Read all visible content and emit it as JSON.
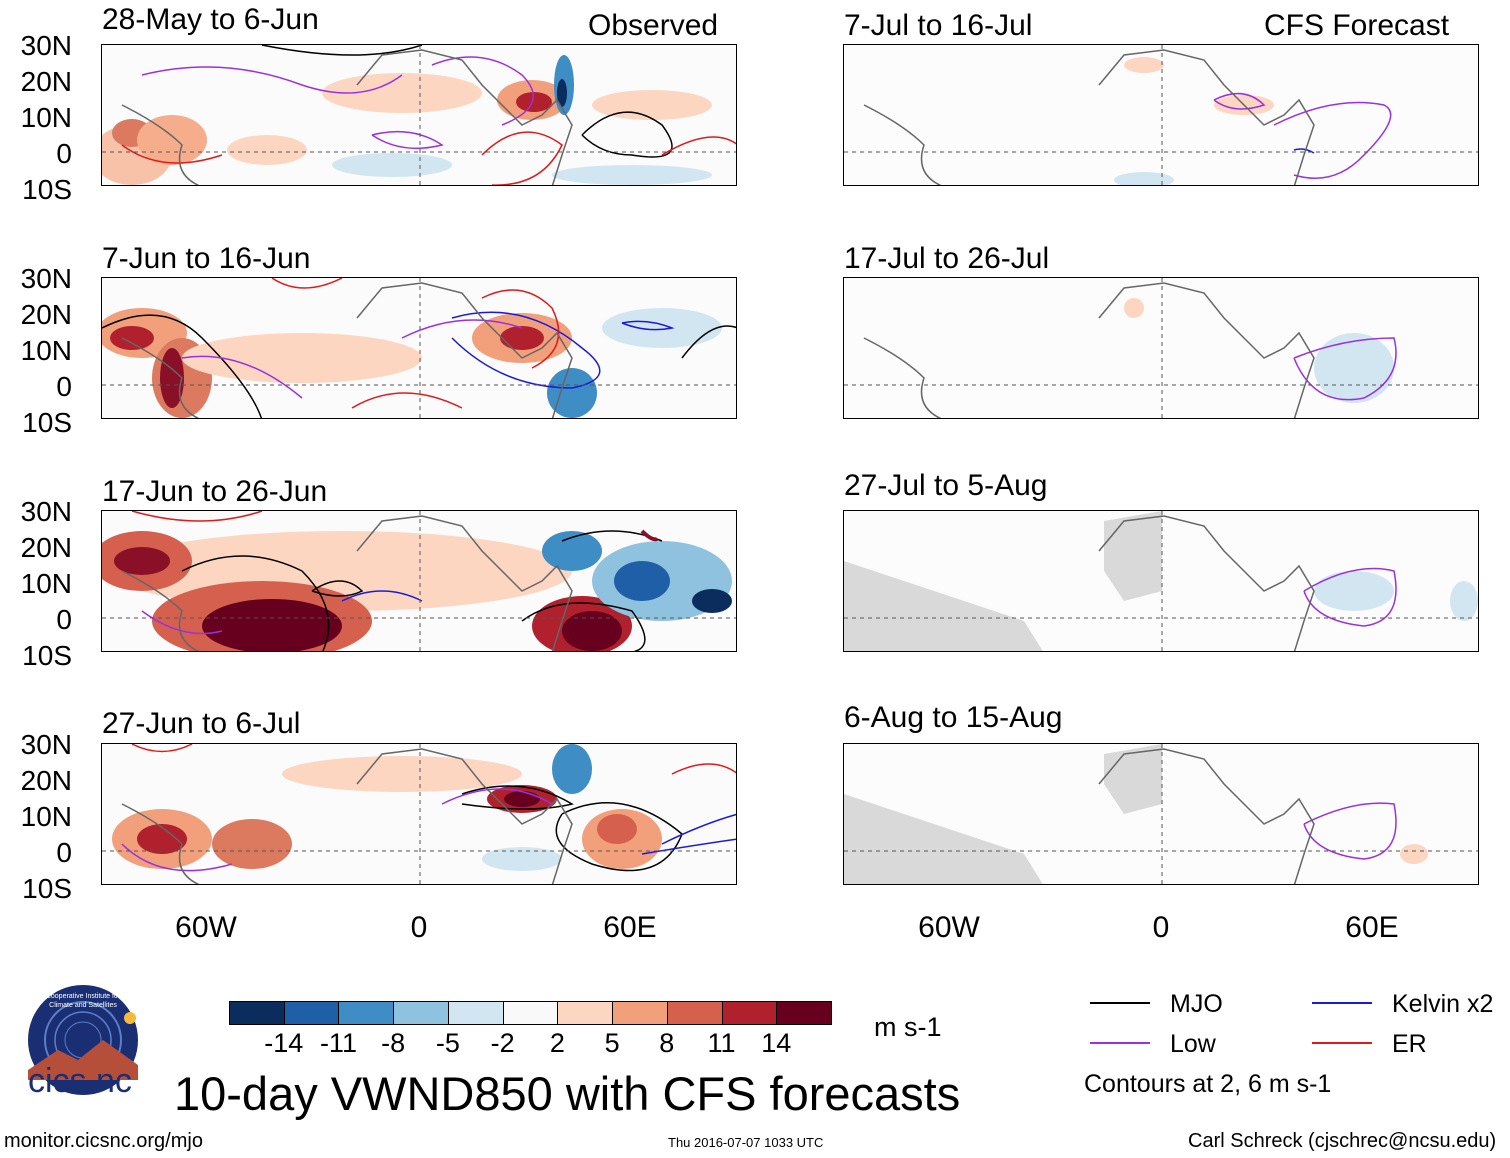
{
  "titles": {
    "observed": "Observed",
    "forecast": "CFS Forecast"
  },
  "panels_left": [
    {
      "title": "28-May to 6-Jun"
    },
    {
      "title": "7-Jun to 16-Jun"
    },
    {
      "title": "17-Jun to 26-Jun"
    },
    {
      "title": "27-Jun to 6-Jul"
    }
  ],
  "panels_right": [
    {
      "title": "7-Jul to 16-Jul"
    },
    {
      "title": "17-Jul to 26-Jul"
    },
    {
      "title": "27-Jul to 5-Aug"
    },
    {
      "title": "6-Aug to 15-Aug"
    }
  ],
  "lat_labels": [
    "30N",
    "20N",
    "10N",
    "0",
    "10S"
  ],
  "lon_labels": [
    "60W",
    "0",
    "60E"
  ],
  "colorbar": {
    "colors": [
      "#0b2d5e",
      "#1f5fa8",
      "#3e8dc4",
      "#8fc2de",
      "#d2e6f1",
      "#f9f9f9",
      "#fcd6c1",
      "#f2a07b",
      "#d5604d",
      "#b0202d",
      "#67001f"
    ],
    "ticks": [
      "-14",
      "-11",
      "-8",
      "-5",
      "-2",
      "2",
      "5",
      "8",
      "11",
      "14"
    ],
    "units": "m s-1"
  },
  "legend": {
    "items": [
      {
        "label": "MJO",
        "color": "#000000"
      },
      {
        "label": "Kelvin x2",
        "color": "#1a1adb"
      },
      {
        "label": "Low",
        "color": "#9b30e0"
      },
      {
        "label": "ER",
        "color": "#e01a1a"
      }
    ],
    "contours_note": "Contours at 2, 6 m s-1"
  },
  "main_title": "10-day VWND850 with CFS forecasts",
  "logo_text": "cics.nc",
  "logo_ring_text": "Cooperative Institute for Climate and Satellites",
  "footer": {
    "url": "monitor.cicsnc.org/mjo",
    "timestamp": "Thu 2016-07-07 1033 UTC",
    "author": "Carl Schreck (cjschrec@ncsu.edu)"
  }
}
